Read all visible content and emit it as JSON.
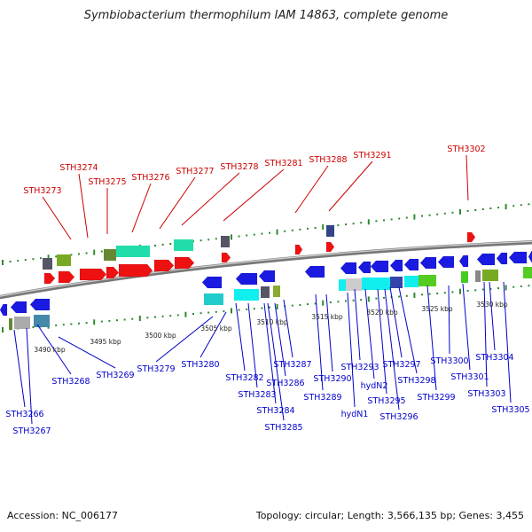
{
  "title": "Symbiobacterium thermophilum IAM 14863, complete genome",
  "footer": {
    "accession": "Accession: NC_006177",
    "stats": "Topology: circular; Length: 3,566,135 bp; Genes: 3,455"
  },
  "colors": {
    "top_label": "#cc0000",
    "bottom_label": "#0000cc",
    "backbone": "#888888",
    "tick": "#2e8b2e"
  },
  "scale_labels": [
    "3490 kbp",
    "3495 kbp",
    "3500 kbp",
    "3505 kbp",
    "3510 kbp",
    "3515 kbp",
    "3520 kbp",
    "3525 kbp",
    "3530 kbp"
  ],
  "top_labels": [
    "STH3273",
    "STH3274",
    "STH3275",
    "STH3276",
    "STH3277",
    "STH3278",
    "STH3281",
    "STH3288",
    "STH3291",
    "STH3302"
  ],
  "bottom_labels": [
    "STH3266",
    "STH3267",
    "STH3268",
    "STH3269",
    "STH3279",
    "STH3280",
    "STH3282",
    "STH3283",
    "STH3284",
    "STH3285",
    "STH3286",
    "STH3287",
    "STH3289",
    "STH3290",
    "hydN1",
    "STH3293",
    "hydN2",
    "STH3295",
    "STH3296",
    "STH3297",
    "STH3298",
    "STH3299",
    "STH3300",
    "STH3301",
    "STH3303",
    "STH3304",
    "STH3305"
  ]
}
